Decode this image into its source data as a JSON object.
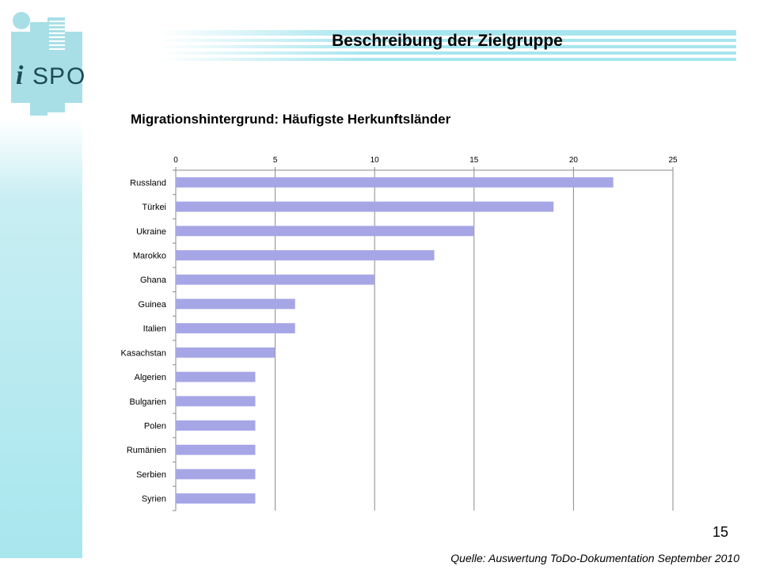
{
  "slide": {
    "title": "Beschreibung der Zielgruppe",
    "page_number": "15",
    "source": "Quelle: Auswertung ToDo-Dokumentation September 2010"
  },
  "logo": {
    "letters": [
      "i",
      "S",
      "P",
      "O"
    ],
    "color": "#a8dfe6",
    "text_color": "#1c4a55"
  },
  "colors": {
    "bar": "#a6a6e6",
    "grid": "#8a8a8a",
    "accent_line": "#a8e6ee"
  },
  "chart_data": {
    "type": "bar",
    "orientation": "horizontal",
    "title": "Migrationshintergrund: Häufigste Herkunftsländer",
    "categories": [
      "Russland",
      "Türkei",
      "Ukraine",
      "Marokko",
      "Ghana",
      "Guinea",
      "Italien",
      "Kasachstan",
      "Algerien",
      "Bulgarien",
      "Polen",
      "Rumänien",
      "Serbien",
      "Syrien"
    ],
    "values": [
      22,
      19,
      15,
      13,
      10,
      6,
      6,
      5,
      4,
      4,
      4,
      4,
      4,
      4
    ],
    "xlim": [
      0,
      25
    ],
    "xticks": [
      0,
      5,
      10,
      15,
      20,
      25
    ],
    "value_axis_position": "top",
    "grid": true,
    "legend": "none"
  }
}
